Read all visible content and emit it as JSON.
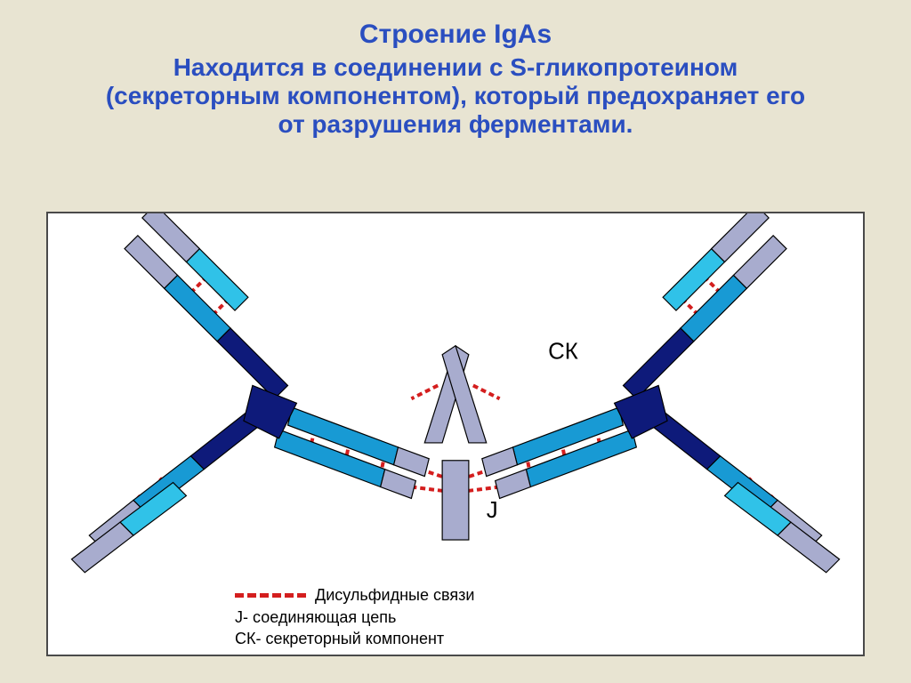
{
  "title": "Строение IgAs",
  "subtitle": "Находится в соединении с S-гликопротеином (секреторным компонентом), который предохраняет его от разрушения ферментами.",
  "labels": {
    "sk": "СК",
    "j": "J"
  },
  "legend": {
    "disulfide": "Дисульфидные связи",
    "j_chain": "J- соединяющая цепь",
    "sk_component": "СК- секреторный компонент"
  },
  "diagram": {
    "type": "infographic",
    "background": "#ffffff",
    "colors": {
      "light_chain_pale": "#a8acce",
      "light_chain_blue": "#30c2e8",
      "heavy_chain_cyan": "#189ad4",
      "heavy_chain_navy": "#0e1a7a",
      "j_chain_fill": "#a8acce",
      "sk_fill": "#a8acce",
      "stroke": "#000000",
      "disulfide": "#d41e1e"
    },
    "stroke_width": 1.2,
    "disulfide_dash": "6 4",
    "disulfide_width": 4,
    "label_font_size": 26,
    "legend_font_size": 18
  }
}
